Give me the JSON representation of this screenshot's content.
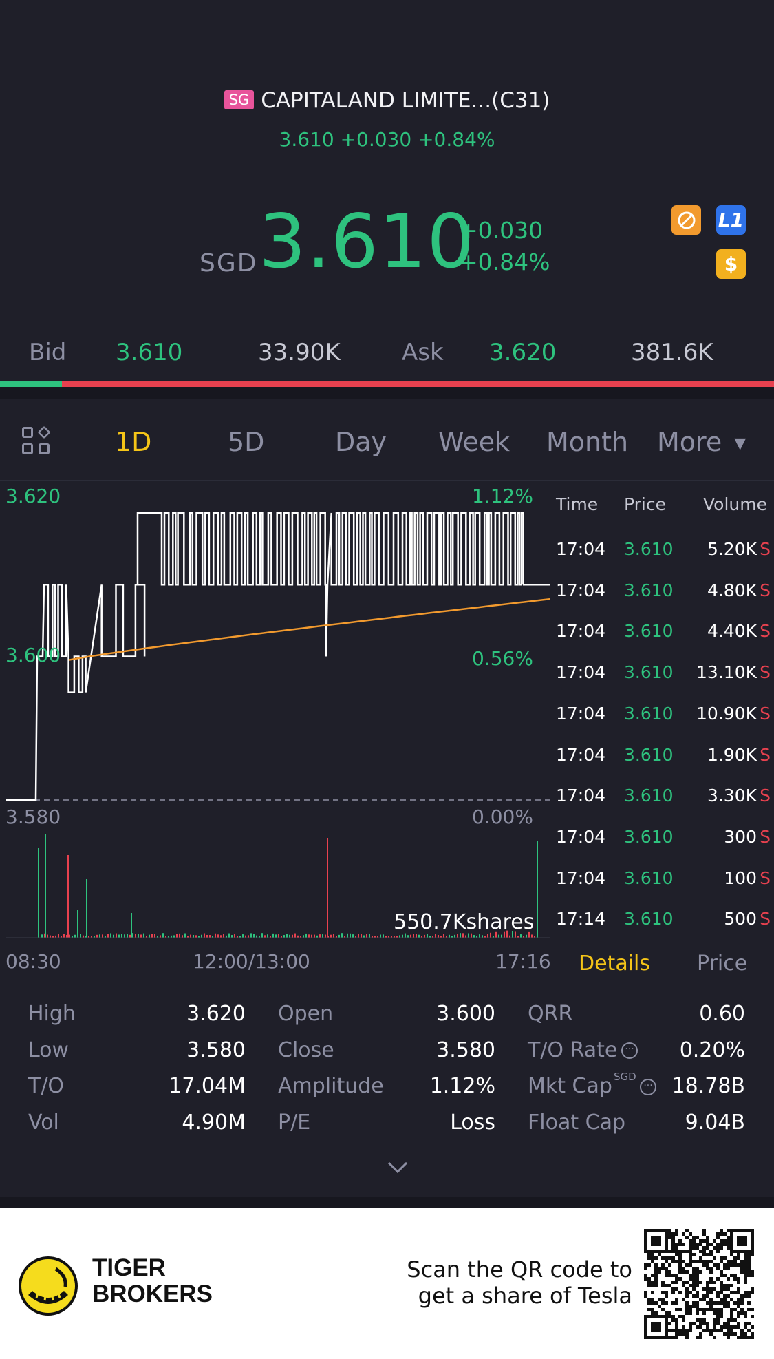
{
  "header": {
    "market_tag": "SG",
    "title": "CAPITALAND LIMITE...(C31)",
    "quote_line": "3.610 +0.030 +0.84%"
  },
  "price": {
    "currency": "SGD",
    "last": "3.610",
    "change": "+0.030",
    "change_pct": "+0.84%"
  },
  "badges": [
    {
      "icon": "no-short-icon"
    },
    {
      "icon": "level1-icon",
      "label": "L1"
    },
    {
      "icon": "dollar-icon",
      "label": "$"
    }
  ],
  "bid_ask": {
    "bid_label": "Bid",
    "bid_price": "3.610",
    "bid_size": "33.90K",
    "ask_label": "Ask",
    "ask_price": "3.620",
    "ask_size": "381.6K",
    "bid_share": 0.08
  },
  "tabs": [
    "1D",
    "5D",
    "Day",
    "Week",
    "Month",
    "More"
  ],
  "active_tab": "1D",
  "chart": {
    "y_top_label": "3.620",
    "y_mid_label": "3.600",
    "y_bottom_label": "3.580",
    "pct_top_label": "1.12%",
    "pct_mid_label": "0.56%",
    "pct_bottom_label": "0.00%",
    "volume_label": "550.7Kshares",
    "x_labels": [
      "08:30",
      "12:00/13:00",
      "17:16"
    ]
  },
  "chart_data": {
    "type": "line",
    "series": [
      {
        "color": "#ffffff"
      },
      {
        "color": "#f29a2e"
      }
    ],
    "ylim": [
      3.58,
      3.62
    ],
    "x_range": [
      "08:30",
      "17:16"
    ]
  },
  "ticks": {
    "headers": {
      "time": "Time",
      "price": "Price",
      "volume": "Volume"
    },
    "rows": [
      {
        "time": "17:04",
        "price": "3.610",
        "volume": "5.20K",
        "side": "S"
      },
      {
        "time": "17:04",
        "price": "3.610",
        "volume": "4.80K",
        "side": "S"
      },
      {
        "time": "17:04",
        "price": "3.610",
        "volume": "4.40K",
        "side": "S"
      },
      {
        "time": "17:04",
        "price": "3.610",
        "volume": "13.10K",
        "side": "S"
      },
      {
        "time": "17:04",
        "price": "3.610",
        "volume": "10.90K",
        "side": "S"
      },
      {
        "time": "17:04",
        "price": "3.610",
        "volume": "1.90K",
        "side": "S"
      },
      {
        "time": "17:04",
        "price": "3.610",
        "volume": "3.30K",
        "side": "S"
      },
      {
        "time": "17:04",
        "price": "3.610",
        "volume": "300",
        "side": "S"
      },
      {
        "time": "17:04",
        "price": "3.610",
        "volume": "100",
        "side": "S"
      },
      {
        "time": "17:14",
        "price": "3.610",
        "volume": "500",
        "side": "S"
      }
    ]
  },
  "tick_tabs": {
    "details": "Details",
    "price": "Price"
  },
  "stats": [
    [
      {
        "label": "High",
        "value": "3.620"
      },
      {
        "label": "Open",
        "value": "3.600"
      },
      {
        "label": "QRR",
        "value": "0.60"
      }
    ],
    [
      {
        "label": "Low",
        "value": "3.580"
      },
      {
        "label": "Close",
        "value": "3.580"
      },
      {
        "label": "T/O Rate",
        "value": "0.20%"
      }
    ],
    [
      {
        "label": "T/O",
        "value": "17.04M"
      },
      {
        "label": "Amplitude",
        "value": "1.12%"
      },
      {
        "label": "Mkt Cap",
        "value": "18.78B"
      }
    ],
    [
      {
        "label": "Vol",
        "value": "4.90M"
      },
      {
        "label": "P/E",
        "value": "Loss"
      },
      {
        "label": "Float Cap",
        "value": "9.04B"
      }
    ]
  ],
  "mkt_cap_currency": "SGD",
  "promo": {
    "brand_line1": "TIGER",
    "brand_line2": "BROKERS",
    "text_line1": "Scan the QR code to",
    "text_line2": "get a share of Tesla"
  },
  "colors": {
    "up": "#2ec27e",
    "down": "#e8414f",
    "accent": "#f5c518",
    "avg_line": "#f29a2e"
  }
}
